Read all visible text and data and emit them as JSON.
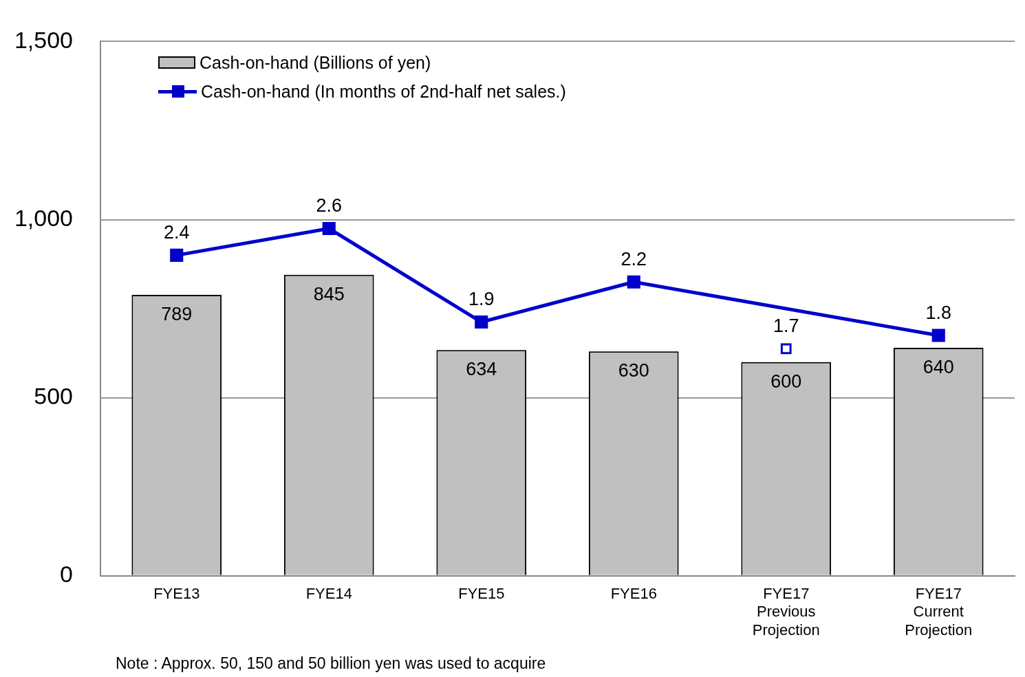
{
  "chart_data": {
    "type": "bar",
    "categories": [
      "FYE13",
      "FYE14",
      "FYE15",
      "FYE16",
      "FYE17\nPrevious\nProjection",
      "FYE17\nCurrent\nProjection"
    ],
    "series": [
      {
        "name": "Cash-on-hand (Billions of yen)",
        "color": "#c0c0c0",
        "values": [
          789,
          845,
          634,
          630,
          600,
          640
        ]
      },
      {
        "name": "Cash-on-hand (In months of 2nd-half net sales.)",
        "type": "line",
        "axis": "y2",
        "color": "#0000cc",
        "marker": "square",
        "x": [
          "FYE13",
          "FYE14",
          "FYE15",
          "FYE16",
          "FYE17\nCurrent\nProjection"
        ],
        "values": [
          2.4,
          2.6,
          1.9,
          2.2,
          1.8
        ]
      },
      {
        "type": "scatter",
        "axis": "y2",
        "color": "#0000cc",
        "marker": "square",
        "x": [
          "FYE17\nPrevious\nProjection"
        ],
        "values": [
          1.7
        ]
      }
    ],
    "ylim": [
      0,
      1500
    ],
    "yticks": [
      0,
      500,
      {
        "value": 1000,
        "label": "1,000"
      },
      {
        "value": 1500,
        "label": "1,500"
      }
    ],
    "y2lim": [
      0,
      4
    ],
    "grid": "y",
    "legend": "top left",
    "data_labels": true,
    "annotations": [
      "Note : Approx.  50, 150 and 50 billion yen was used to acquire"
    ]
  }
}
